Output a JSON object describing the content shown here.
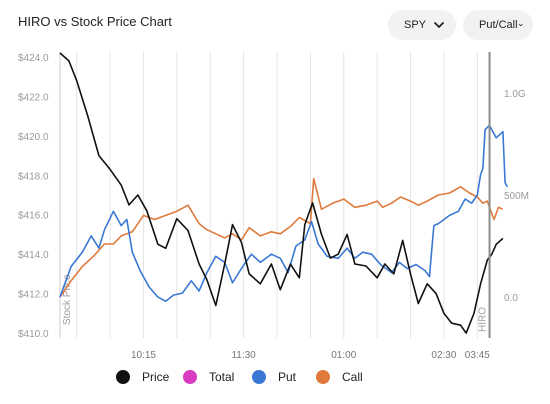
{
  "header": {
    "title": "HIRO vs Stock Price Chart",
    "ticker_select": "SPY",
    "mode_select": "Put/Call"
  },
  "legend": [
    {
      "label": "Price",
      "color": "#111111"
    },
    {
      "label": "Total",
      "color": "#d63bc0"
    },
    {
      "label": "Put",
      "color": "#3a78d4"
    },
    {
      "label": "Call",
      "color": "#e07a3c"
    }
  ],
  "chart_data": {
    "type": "line",
    "title": "HIRO vs Stock Price Chart",
    "x_ticks": [
      "10:15",
      "11:30",
      "01:00",
      "02:30",
      "03:45"
    ],
    "left_axis": {
      "label": "Stock Price",
      "ticks": [
        "$424.0",
        "$422.0",
        "$420.0",
        "$418.0",
        "$416.0",
        "$414.0",
        "$412.0",
        "$410.0"
      ],
      "range": [
        409.75,
        424.25
      ]
    },
    "right_axis": {
      "label": "HIRO",
      "ticks": [
        "1.0G",
        "500M",
        "0.0"
      ],
      "range": [
        -200,
        1200
      ],
      "unit": "M"
    },
    "x_range_minutes": [
      0,
      390
    ],
    "series": [
      {
        "name": "Price",
        "axis": "left",
        "color": "#111111",
        "points": [
          [
            0,
            424.2
          ],
          [
            8,
            423.8
          ],
          [
            15,
            422.8
          ],
          [
            25,
            421.0
          ],
          [
            35,
            419.0
          ],
          [
            45,
            418.3
          ],
          [
            55,
            417.5
          ],
          [
            62,
            416.5
          ],
          [
            70,
            417.0
          ],
          [
            78,
            416.2
          ],
          [
            88,
            414.5
          ],
          [
            95,
            414.3
          ],
          [
            105,
            415.8
          ],
          [
            115,
            415.2
          ],
          [
            125,
            413.5
          ],
          [
            132,
            412.7
          ],
          [
            140,
            411.4
          ],
          [
            148,
            413.5
          ],
          [
            155,
            415.5
          ],
          [
            163,
            414.6
          ],
          [
            170,
            413.0
          ],
          [
            180,
            412.5
          ],
          [
            190,
            413.5
          ],
          [
            198,
            412.2
          ],
          [
            207,
            413.5
          ],
          [
            215,
            412.8
          ],
          [
            220,
            415.5
          ],
          [
            227,
            416.6
          ],
          [
            235,
            415.0
          ],
          [
            243,
            413.8
          ],
          [
            250,
            414.0
          ],
          [
            258,
            415.0
          ],
          [
            265,
            413.5
          ],
          [
            275,
            413.4
          ],
          [
            285,
            412.8
          ],
          [
            292,
            413.5
          ],
          [
            300,
            413.0
          ],
          [
            308,
            414.7
          ],
          [
            315,
            413.0
          ],
          [
            322,
            411.5
          ],
          [
            330,
            412.5
          ],
          [
            338,
            412.0
          ],
          [
            345,
            411.0
          ],
          [
            352,
            410.5
          ],
          [
            360,
            410.4
          ],
          [
            365,
            410.0
          ],
          [
            372,
            411.0
          ],
          [
            378,
            412.5
          ],
          [
            384,
            413.7
          ],
          [
            388,
            414.0
          ],
          [
            392,
            414.5
          ],
          [
            398,
            414.8
          ]
        ]
      },
      {
        "name": "Put",
        "axis": "right",
        "color": "#3a78d4",
        "points": [
          [
            0,
            0
          ],
          [
            10,
            150
          ],
          [
            20,
            220
          ],
          [
            28,
            300
          ],
          [
            35,
            240
          ],
          [
            40,
            330
          ],
          [
            48,
            420
          ],
          [
            55,
            350
          ],
          [
            60,
            380
          ],
          [
            65,
            220
          ],
          [
            72,
            130
          ],
          [
            80,
            50
          ],
          [
            88,
            0
          ],
          [
            95,
            -20
          ],
          [
            102,
            10
          ],
          [
            110,
            20
          ],
          [
            118,
            80
          ],
          [
            125,
            30
          ],
          [
            132,
            120
          ],
          [
            140,
            200
          ],
          [
            148,
            170
          ],
          [
            155,
            70
          ],
          [
            163,
            140
          ],
          [
            172,
            210
          ],
          [
            180,
            170
          ],
          [
            190,
            210
          ],
          [
            198,
            190
          ],
          [
            205,
            120
          ],
          [
            212,
            250
          ],
          [
            220,
            280
          ],
          [
            226,
            370
          ],
          [
            232,
            260
          ],
          [
            240,
            200
          ],
          [
            250,
            190
          ],
          [
            258,
            240
          ],
          [
            265,
            190
          ],
          [
            272,
            220
          ],
          [
            280,
            210
          ],
          [
            288,
            160
          ],
          [
            298,
            120
          ],
          [
            305,
            170
          ],
          [
            312,
            140
          ],
          [
            320,
            160
          ],
          [
            328,
            130
          ],
          [
            332,
            100
          ],
          [
            334,
            230
          ],
          [
            336,
            350
          ],
          [
            340,
            360
          ],
          [
            350,
            400
          ],
          [
            358,
            420
          ],
          [
            364,
            480
          ],
          [
            370,
            460
          ],
          [
            375,
            500
          ],
          [
            378,
            600
          ],
          [
            380,
            630
          ],
          [
            382,
            820
          ],
          [
            386,
            840
          ],
          [
            392,
            780
          ],
          [
            398,
            810
          ],
          [
            400,
            560
          ],
          [
            402,
            540
          ]
        ]
      },
      {
        "name": "Call",
        "axis": "right",
        "color": "#e07a3c",
        "points": [
          [
            0,
            0
          ],
          [
            10,
            80
          ],
          [
            20,
            150
          ],
          [
            30,
            200
          ],
          [
            40,
            260
          ],
          [
            48,
            260
          ],
          [
            55,
            300
          ],
          [
            65,
            320
          ],
          [
            75,
            400
          ],
          [
            85,
            380
          ],
          [
            95,
            400
          ],
          [
            105,
            420
          ],
          [
            115,
            450
          ],
          [
            125,
            360
          ],
          [
            132,
            330
          ],
          [
            140,
            310
          ],
          [
            148,
            290
          ],
          [
            155,
            310
          ],
          [
            163,
            280
          ],
          [
            170,
            340
          ],
          [
            180,
            300
          ],
          [
            190,
            320
          ],
          [
            198,
            310
          ],
          [
            208,
            350
          ],
          [
            215,
            390
          ],
          [
            225,
            360
          ],
          [
            228,
            580
          ],
          [
            235,
            430
          ],
          [
            245,
            460
          ],
          [
            255,
            480
          ],
          [
            265,
            440
          ],
          [
            275,
            450
          ],
          [
            285,
            470
          ],
          [
            290,
            440
          ],
          [
            298,
            460
          ],
          [
            306,
            490
          ],
          [
            315,
            470
          ],
          [
            322,
            450
          ],
          [
            330,
            470
          ],
          [
            340,
            500
          ],
          [
            350,
            510
          ],
          [
            360,
            540
          ],
          [
            368,
            510
          ],
          [
            375,
            490
          ],
          [
            380,
            460
          ],
          [
            384,
            470
          ],
          [
            390,
            380
          ],
          [
            394,
            440
          ],
          [
            398,
            430
          ]
        ]
      }
    ]
  }
}
